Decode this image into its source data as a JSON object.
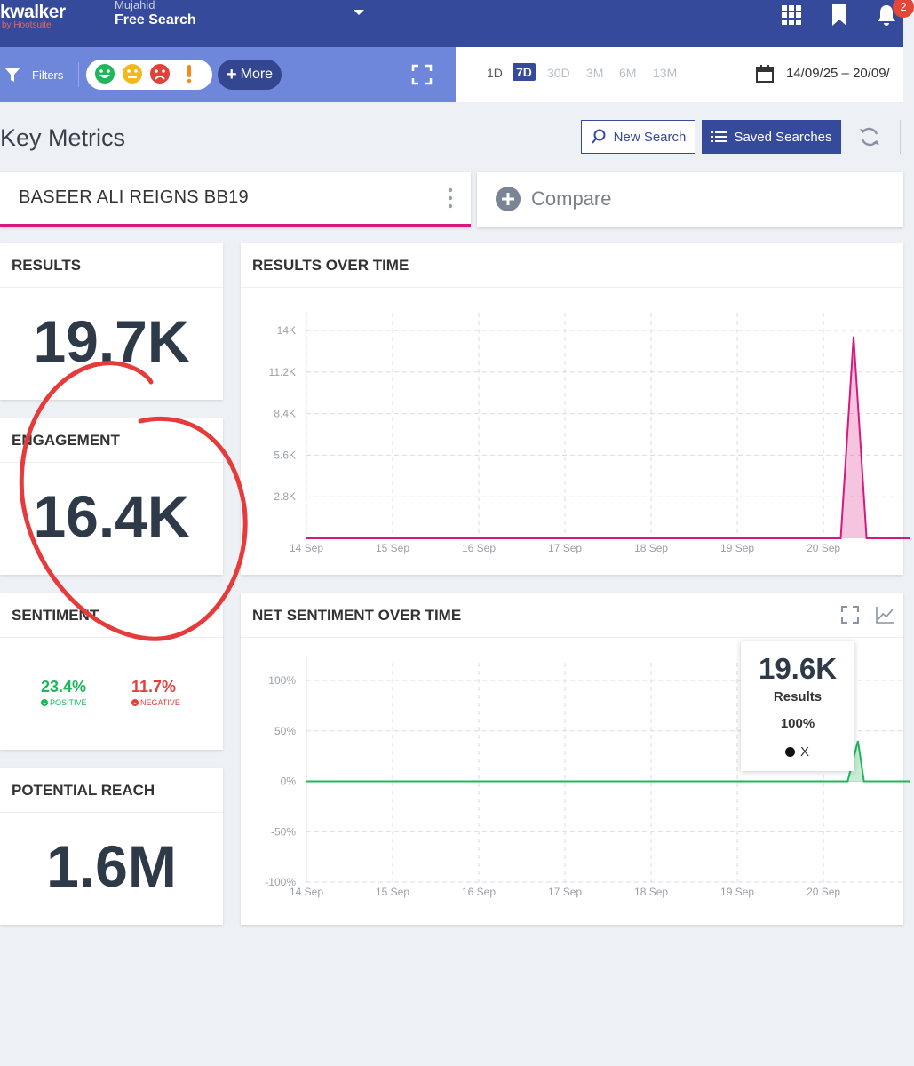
{
  "header": {
    "logo": "kwalker",
    "logo_sub": "by Hootsuite",
    "user": "Mujahid",
    "project": "Free Search",
    "notification_count": "2",
    "icons": [
      "apps-grid-icon",
      "bookmark-icon",
      "bell-icon"
    ]
  },
  "filterbar": {
    "filters_label": "Filters",
    "more_label": "More",
    "sentiment_faces": [
      "positive-face-icon",
      "neutral-face-icon",
      "negative-face-icon",
      "alert-icon"
    ]
  },
  "date_ranges": [
    "1D",
    "7D",
    "30D",
    "3M",
    "6M",
    "13M"
  ],
  "active_range": "7D",
  "date_range_value": "14/09/25 – 20/09/",
  "page_title": "Key Metrics",
  "buttons": {
    "new_search": "New Search",
    "saved_searches": "Saved Searches"
  },
  "search_tab": "BASEER ALI REIGNS BB19",
  "compare_label": "Compare",
  "metrics": {
    "results": {
      "title": "RESULTS",
      "value": "19.7K"
    },
    "engagement": {
      "title": "ENGAGEMENT",
      "value": "16.4K"
    },
    "sentiment": {
      "title": "SENTIMENT",
      "positive_value": "23.4%",
      "positive_label": "POSITIVE",
      "negative_value": "11.7%",
      "negative_label": "NEGATIVE"
    },
    "potential_reach": {
      "title": "POTENTIAL REACH",
      "value": "1.6M"
    }
  },
  "colors": {
    "header_bg": "#364a9c",
    "filter_bg": "#6f87db",
    "accent_pink": "#d6187f",
    "positive": "#1fb65c",
    "negative": "#e0413a",
    "annotation_red": "#e53b3b"
  },
  "chart_data": [
    {
      "type": "area",
      "title": "RESULTS OVER TIME",
      "categories": [
        "14 Sep",
        "15 Sep",
        "16 Sep",
        "17 Sep",
        "18 Sep",
        "19 Sep",
        "20 Sep"
      ],
      "y_ticks": [
        "2.8K",
        "5.6K",
        "8.4K",
        "11.2K",
        "14K"
      ],
      "ylim": [
        0,
        14000
      ],
      "grid": true,
      "series": [
        {
          "color": "#d6187f",
          "points": [
            {
              "x": 0,
              "y": 0
            },
            {
              "x": 6.2,
              "y": 0
            },
            {
              "x": 6.35,
              "y": 13600
            },
            {
              "x": 6.5,
              "y": 0
            },
            {
              "x": 7,
              "y": 0
            }
          ]
        }
      ]
    },
    {
      "type": "line",
      "title": "NET SENTIMENT OVER TIME",
      "categories": [
        "14 Sep",
        "15 Sep",
        "16 Sep",
        "17 Sep",
        "18 Sep",
        "19 Sep",
        "20 Sep"
      ],
      "y_ticks": [
        "100%",
        "50%",
        "0%",
        "-50%",
        "-100%"
      ],
      "ylim": [
        -100,
        100
      ],
      "grid": true,
      "series": [
        {
          "color": "#1fb65c",
          "points": [
            {
              "x": 0,
              "y": 0
            },
            {
              "x": 6.28,
              "y": 0
            },
            {
              "x": 6.4,
              "y": 40
            },
            {
              "x": 6.47,
              "y": 0
            },
            {
              "x": 7,
              "y": 0
            }
          ]
        }
      ],
      "tooltip": {
        "value": "19.6K",
        "label": "Results",
        "percent": "100%",
        "series": "X"
      }
    }
  ]
}
